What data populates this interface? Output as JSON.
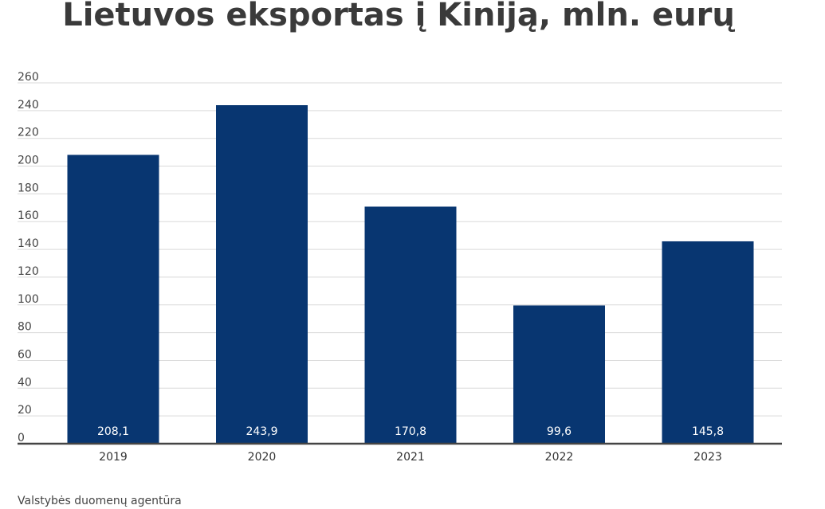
{
  "title": "Lietuvos eksportas į Kiniją, mln. eurų",
  "source": "Valstybės duomenų agentūra",
  "colors": {
    "bar": "#083671",
    "grid": "#d9d9d9",
    "axis": "#444444"
  },
  "chart_data": {
    "type": "bar",
    "title": "Lietuvos eksportas į Kiniją, mln. eurų",
    "categories": [
      "2019",
      "2020",
      "2021",
      "2022",
      "2023"
    ],
    "values": [
      208.1,
      243.9,
      170.8,
      99.6,
      145.8
    ],
    "data_labels": [
      "208,1",
      "243,9",
      "170,8",
      "99,6",
      "145,8"
    ],
    "xlabel": "",
    "ylabel": "",
    "ylim": [
      0,
      260
    ],
    "yticks": [
      0,
      20,
      40,
      60,
      80,
      100,
      120,
      140,
      160,
      180,
      200,
      220,
      240,
      260
    ],
    "grid": true,
    "legend": "none"
  }
}
